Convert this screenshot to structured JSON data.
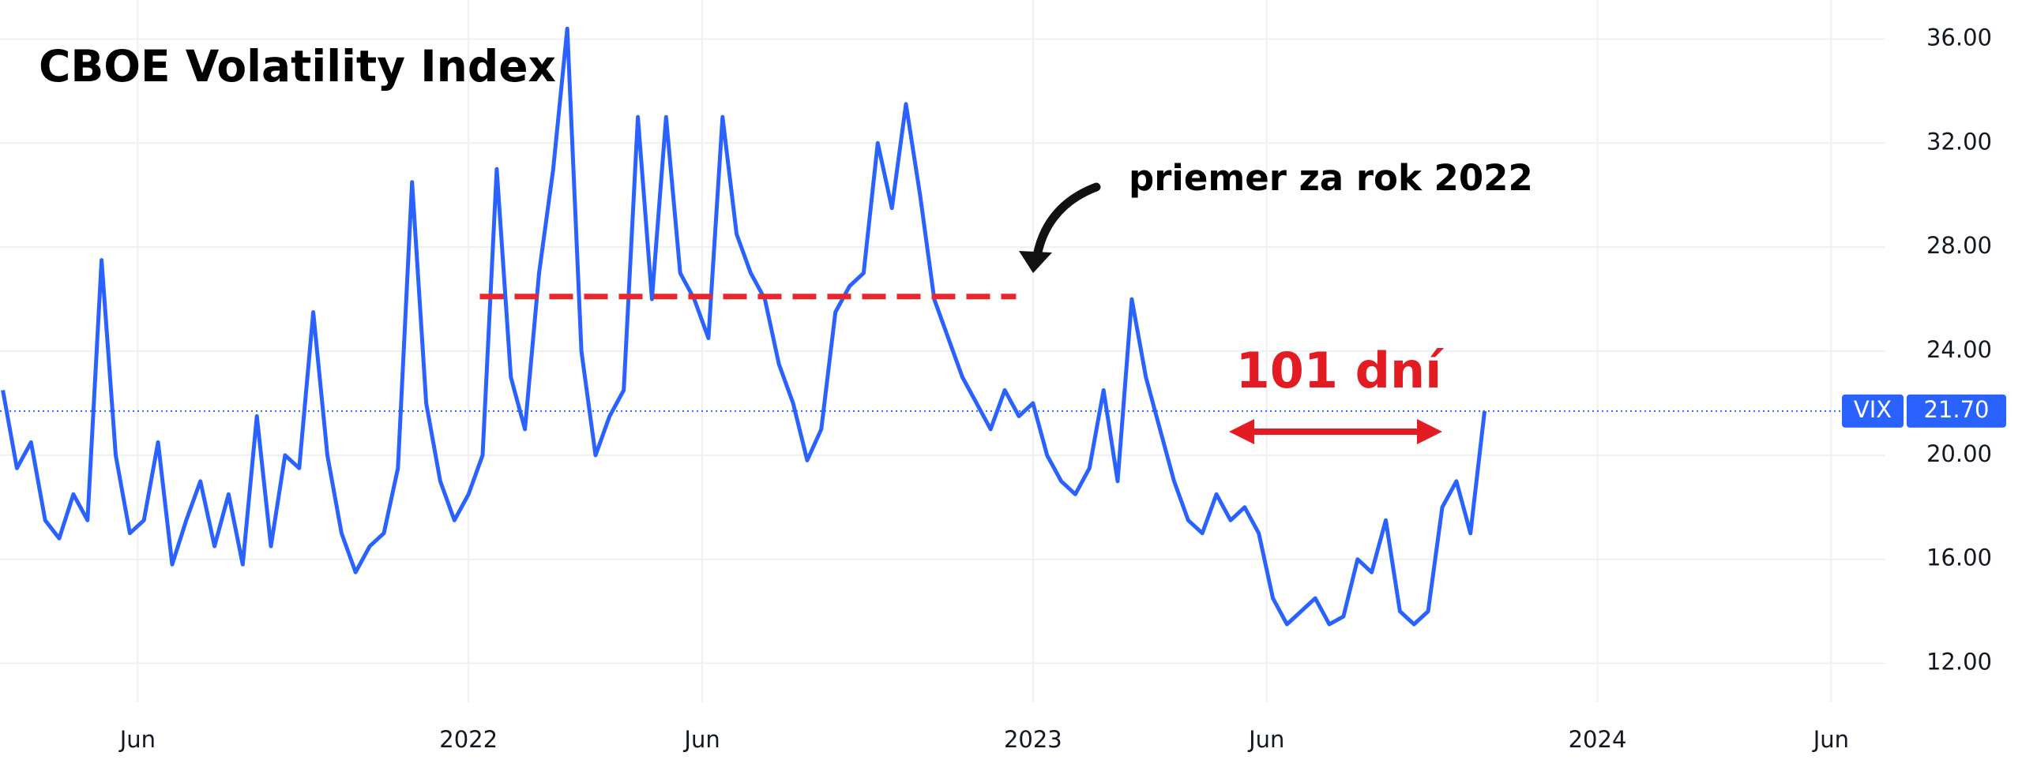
{
  "chart_data": {
    "type": "line",
    "title": "CBOE Volatility Index",
    "x": [
      2021.175,
      2021.2,
      2021.225,
      2021.25,
      2021.275,
      2021.3,
      2021.325,
      2021.35,
      2021.375,
      2021.4,
      2021.425,
      2021.45,
      2021.475,
      2021.5,
      2021.525,
      2021.55,
      2021.575,
      2021.6,
      2021.625,
      2021.65,
      2021.675,
      2021.7,
      2021.725,
      2021.75,
      2021.775,
      2021.8,
      2021.825,
      2021.85,
      2021.875,
      2021.9,
      2021.925,
      2021.95,
      2021.975,
      2022.0,
      2022.025,
      2022.05,
      2022.075,
      2022.1,
      2022.125,
      2022.15,
      2022.175,
      2022.2,
      2022.225,
      2022.25,
      2022.275,
      2022.3,
      2022.325,
      2022.35,
      2022.375,
      2022.4,
      2022.425,
      2022.45,
      2022.475,
      2022.5,
      2022.525,
      2022.55,
      2022.575,
      2022.6,
      2022.625,
      2022.65,
      2022.675,
      2022.7,
      2022.725,
      2022.75,
      2022.775,
      2022.8,
      2022.825,
      2022.85,
      2022.875,
      2022.9,
      2022.925,
      2022.95,
      2022.975,
      2023.0,
      2023.025,
      2023.05,
      2023.075,
      2023.1,
      2023.125,
      2023.15,
      2023.175,
      2023.2,
      2023.225,
      2023.25,
      2023.275,
      2023.3,
      2023.325,
      2023.35,
      2023.375,
      2023.4,
      2023.425,
      2023.45,
      2023.475,
      2023.5,
      2023.525,
      2023.55,
      2023.575,
      2023.6,
      2023.625,
      2023.65,
      2023.675,
      2023.7,
      2023.725,
      2023.75,
      2023.775,
      2023.8
    ],
    "series": [
      {
        "name": "VIX",
        "color": "#2962ff",
        "values": [
          22.5,
          19.5,
          20.5,
          17.5,
          16.8,
          18.5,
          17.5,
          27.5,
          20,
          17,
          17.5,
          20.5,
          15.8,
          17.5,
          19,
          16.5,
          18.5,
          15.8,
          21.5,
          16.5,
          20,
          19.5,
          25.5,
          20,
          17,
          15.5,
          16.5,
          17,
          19.5,
          30.5,
          22,
          19,
          17.5,
          18.5,
          20,
          31,
          23,
          21,
          27,
          31,
          36.4,
          24,
          20,
          21.5,
          22.5,
          33,
          26,
          33,
          27,
          26,
          24.5,
          33,
          28.5,
          27,
          26,
          23.5,
          22,
          19.8,
          21,
          25.5,
          26.5,
          27,
          32,
          29.5,
          33.5,
          30,
          26,
          24.5,
          23,
          22,
          21,
          22.5,
          21.5,
          22,
          20,
          19,
          18.5,
          19.5,
          22.5,
          19,
          26,
          23,
          21,
          19,
          17.5,
          17,
          18.5,
          17.5,
          18,
          17,
          14.5,
          13.5,
          14,
          14.5,
          13.5,
          13.8,
          16,
          15.5,
          17.5,
          14,
          13.5,
          14,
          18,
          19,
          17,
          21.7
        ]
      }
    ],
    "last_value": {
      "value": 21.7,
      "label": "21.70"
    },
    "reference_lines": [
      {
        "value": 26.1,
        "x": [
          2022.02,
          2022.97
        ],
        "color": "#e8262b"
      }
    ],
    "annotations": [
      {
        "text": "priemer za rok 2022",
        "color": "#000000"
      },
      {
        "text": "101 dní",
        "color": "#e31b23"
      }
    ],
    "xlim": [
      2021.17,
      2024.51
    ],
    "xticks": [
      {
        "value": 2021.414,
        "label": "Jun"
      },
      2022,
      {
        "value": 2022.414,
        "label": "Jun"
      },
      2023,
      {
        "value": 2023.414,
        "label": "Jun"
      },
      2024,
      {
        "value": 2024.414,
        "label": "Jun"
      }
    ],
    "ylim": [
      10.5,
      37.5
    ],
    "yticks": [
      {
        "value": 12,
        "label": "12.00"
      },
      {
        "value": 16,
        "label": "16.00"
      },
      {
        "value": 20,
        "label": "20.00"
      },
      {
        "value": 24,
        "label": "24.00"
      },
      {
        "value": 28,
        "label": "28.00"
      },
      {
        "value": 32,
        "label": "32.00"
      },
      {
        "value": 36,
        "label": "36.00"
      }
    ],
    "grid": true
  }
}
